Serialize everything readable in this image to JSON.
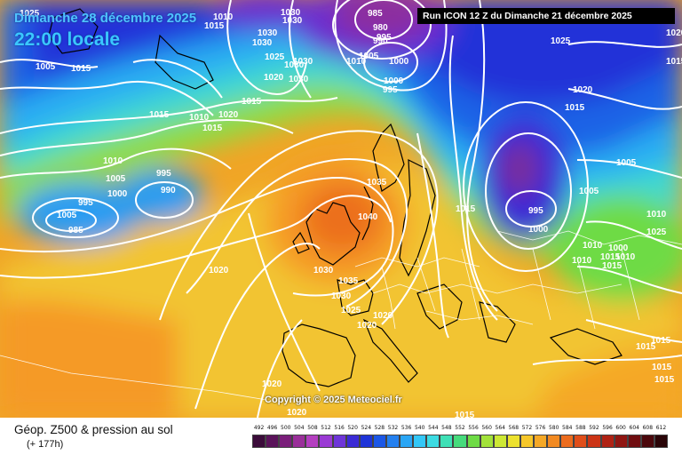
{
  "header": {
    "date": "Dimanche 28 décembre 2025",
    "time": "22:00 locale",
    "run": "Run ICON 12 Z du Dimanche 21 décembre 2025"
  },
  "copyright": "Copyright © 2025 Meteociel.fr",
  "legend": {
    "title": "Géop. Z500 & pression au sol",
    "lead": "(+ 177h)",
    "scale": [
      {
        "label": "492",
        "color": "#3b0c3a"
      },
      {
        "label": "496",
        "color": "#5a135a"
      },
      {
        "label": "500",
        "color": "#7a1e7a"
      },
      {
        "label": "504",
        "color": "#9a2f9a"
      },
      {
        "label": "508",
        "color": "#b43fc0"
      },
      {
        "label": "512",
        "color": "#9a3ad4"
      },
      {
        "label": "516",
        "color": "#6e35d8"
      },
      {
        "label": "520",
        "color": "#3b2bd6"
      },
      {
        "label": "524",
        "color": "#1e34d8"
      },
      {
        "label": "528",
        "color": "#1b57e6"
      },
      {
        "label": "532",
        "color": "#2480ef"
      },
      {
        "label": "536",
        "color": "#2aa6f5"
      },
      {
        "label": "540",
        "color": "#33c7f7"
      },
      {
        "label": "544",
        "color": "#3cdbe2"
      },
      {
        "label": "548",
        "color": "#3ee0b6"
      },
      {
        "label": "552",
        "color": "#46db7c"
      },
      {
        "label": "556",
        "color": "#6edb45"
      },
      {
        "label": "560",
        "color": "#a2e23a"
      },
      {
        "label": "564",
        "color": "#cde834"
      },
      {
        "label": "568",
        "color": "#ece12e"
      },
      {
        "label": "572",
        "color": "#f6c72a"
      },
      {
        "label": "576",
        "color": "#f5a826"
      },
      {
        "label": "580",
        "color": "#f28a22"
      },
      {
        "label": "584",
        "color": "#ec6c1e"
      },
      {
        "label": "588",
        "color": "#e04e1a"
      },
      {
        "label": "592",
        "color": "#cc3416"
      },
      {
        "label": "596",
        "color": "#b02214"
      },
      {
        "label": "600",
        "color": "#901612"
      },
      {
        "label": "604",
        "color": "#700d10"
      },
      {
        "label": "608",
        "color": "#4c080c"
      },
      {
        "label": "612",
        "color": "#2a0508"
      }
    ]
  },
  "isobars": [
    "1025",
    "1015",
    "1030",
    "1030",
    "1010",
    "1030",
    "1030",
    "1025",
    "1030",
    "1020",
    "1030",
    "1030",
    "995",
    "1005",
    "1000",
    "1000",
    "995",
    "1010",
    "1005",
    "1015",
    "1015",
    "1020",
    "1015",
    "1010",
    "1020",
    "1015",
    "1025",
    "1015",
    "1020",
    "1015",
    "1010",
    "1005",
    "995",
    "1000",
    "990",
    "995",
    "985",
    "1005",
    "1035",
    "1040",
    "1015",
    "995",
    "1000",
    "1010",
    "1005",
    "1005",
    "1020",
    "1035",
    "1030",
    "1025",
    "1020",
    "1020",
    "1010",
    "1015",
    "1010",
    "1015",
    "1015",
    "1015",
    "1015",
    "1020",
    "1020",
    "1015",
    "1015",
    "1030",
    "1025",
    "980",
    "985",
    "990",
    "1010",
    "1000"
  ]
}
